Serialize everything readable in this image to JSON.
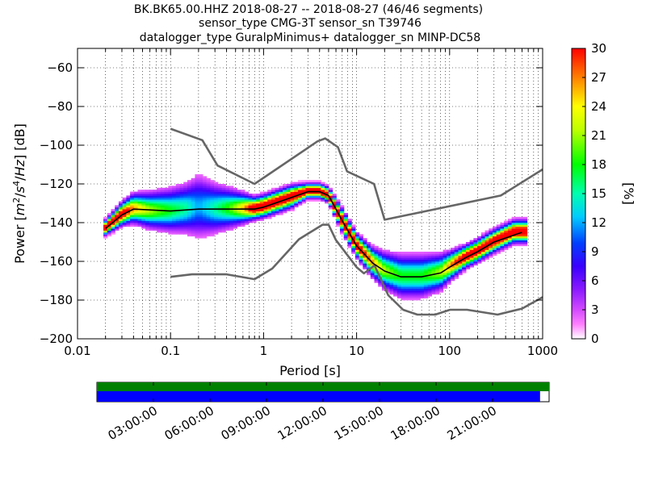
{
  "chart_data": {
    "type": "heatmap",
    "title_lines": [
      "BK.BK65.00.HHZ   2018-08-27 -- 2018-08-27  (46/46 segments)",
      "sensor_type CMG-3T sensor_sn T39746",
      "datalogger_type GuralpMinimus+ datalogger_sn MINP-DC58"
    ],
    "xlabel": "Period [s]",
    "ylabel": "Power [m²/s⁴/Hz] [dB]",
    "x_scale": "log",
    "xlim": [
      0.01,
      1000
    ],
    "ylim": [
      -200,
      -50
    ],
    "x_ticks": [
      0.01,
      0.1,
      1,
      10,
      100,
      1000
    ],
    "x_tick_labels": [
      "0.01",
      "0.1",
      "1",
      "10",
      "100",
      "1000"
    ],
    "y_ticks": [
      -200,
      -180,
      -160,
      -140,
      -120,
      -100,
      -80,
      -60
    ],
    "y_tick_labels": [
      "−200",
      "−180",
      "−160",
      "−140",
      "−120",
      "−100",
      "−80",
      "−60"
    ],
    "grid": "dotted",
    "colorbar": {
      "label": "[%]",
      "range": [
        0,
        30
      ],
      "ticks": [
        0,
        3,
        6,
        9,
        12,
        15,
        18,
        21,
        24,
        27,
        30
      ],
      "tick_labels": [
        "0",
        "3",
        "6",
        "9",
        "12",
        "15",
        "18",
        "21",
        "24",
        "27",
        "30"
      ],
      "colormap": "pqlx"
    },
    "noise_models": {
      "high": {
        "name": "NHNM",
        "color": "#666666",
        "points": [
          [
            0.1,
            -91.5
          ],
          [
            0.22,
            -97.4
          ],
          [
            0.32,
            -110.5
          ],
          [
            0.8,
            -120
          ],
          [
            3.8,
            -98
          ],
          [
            4.6,
            -96.5
          ],
          [
            6.3,
            -101
          ],
          [
            7.9,
            -113.5
          ],
          [
            15.4,
            -120
          ],
          [
            20,
            -138.5
          ],
          [
            354.8,
            -126
          ],
          [
            1000,
            -112.5
          ]
        ]
      },
      "low": {
        "name": "NLNM",
        "color": "#666666",
        "points": [
          [
            0.1,
            -168
          ],
          [
            0.17,
            -166.7
          ],
          [
            0.4,
            -166.7
          ],
          [
            0.8,
            -169.2
          ],
          [
            1.24,
            -163.7
          ],
          [
            2.4,
            -148.6
          ],
          [
            4.3,
            -141.1
          ],
          [
            5,
            -141.1
          ],
          [
            6,
            -149
          ],
          [
            10,
            -163
          ],
          [
            12,
            -166.2
          ],
          [
            15.6,
            -162.1
          ],
          [
            21.9,
            -177.5
          ],
          [
            31.6,
            -185
          ],
          [
            45,
            -187.5
          ],
          [
            70,
            -187.5
          ],
          [
            101,
            -185
          ],
          [
            154,
            -185
          ],
          [
            328,
            -187.5
          ],
          [
            600,
            -184.4
          ],
          [
            1000,
            -178.5
          ]
        ]
      },
      "median": {
        "name": "median",
        "color": "#000000",
        "points": [
          [
            0.02,
            -143
          ],
          [
            0.03,
            -136
          ],
          [
            0.04,
            -133
          ],
          [
            0.1,
            -134
          ],
          [
            0.2,
            -133
          ],
          [
            0.5,
            -133
          ],
          [
            0.8,
            -133
          ],
          [
            1,
            -132
          ],
          [
            2,
            -127
          ],
          [
            3,
            -124
          ],
          [
            4,
            -124
          ],
          [
            5,
            -126
          ],
          [
            7,
            -139
          ],
          [
            10,
            -152
          ],
          [
            15,
            -161
          ],
          [
            20,
            -165
          ],
          [
            30,
            -168
          ],
          [
            50,
            -168
          ],
          [
            80,
            -166
          ],
          [
            100,
            -163
          ],
          [
            150,
            -158
          ],
          [
            200,
            -155
          ],
          [
            300,
            -150
          ],
          [
            600,
            -145
          ]
        ]
      }
    },
    "density_profile": {
      "description_units": "period [s], center dB, spread dB",
      "points": [
        [
          0.02,
          -143,
          2
        ],
        [
          0.03,
          -136,
          3
        ],
        [
          0.04,
          -133,
          4
        ],
        [
          0.06,
          -134,
          5
        ],
        [
          0.1,
          -134,
          6
        ],
        [
          0.15,
          -133,
          7
        ],
        [
          0.2,
          -132,
          9
        ],
        [
          0.3,
          -133,
          7
        ],
        [
          0.5,
          -133,
          5
        ],
        [
          0.8,
          -133,
          3
        ],
        [
          1,
          -132,
          3
        ],
        [
          2,
          -127,
          3
        ],
        [
          3,
          -124,
          2
        ],
        [
          4,
          -124,
          2
        ],
        [
          5,
          -126,
          2
        ],
        [
          7,
          -139,
          3
        ],
        [
          10,
          -152,
          3
        ],
        [
          15,
          -161,
          4
        ],
        [
          20,
          -165,
          5
        ],
        [
          30,
          -168,
          6
        ],
        [
          50,
          -168,
          6
        ],
        [
          80,
          -166,
          5
        ],
        [
          100,
          -163,
          4
        ],
        [
          150,
          -158,
          3
        ],
        [
          200,
          -155,
          3
        ],
        [
          300,
          -150,
          3
        ],
        [
          500,
          -145,
          3
        ],
        [
          650,
          -145,
          3
        ]
      ]
    },
    "time_coverage": {
      "labels": [
        "03:00:00",
        "06:00:00",
        "09:00:00",
        "12:00:00",
        "15:00:00",
        "18:00:00",
        "21:00:00"
      ],
      "label_hours": [
        3,
        6,
        9,
        12,
        15,
        18,
        21
      ],
      "range_hours": [
        0,
        24
      ],
      "data_coverage_fraction": 1.0,
      "psd_coverage_fraction": 0.98,
      "data_color": "#008000",
      "psd_color": "#0000ff"
    }
  }
}
